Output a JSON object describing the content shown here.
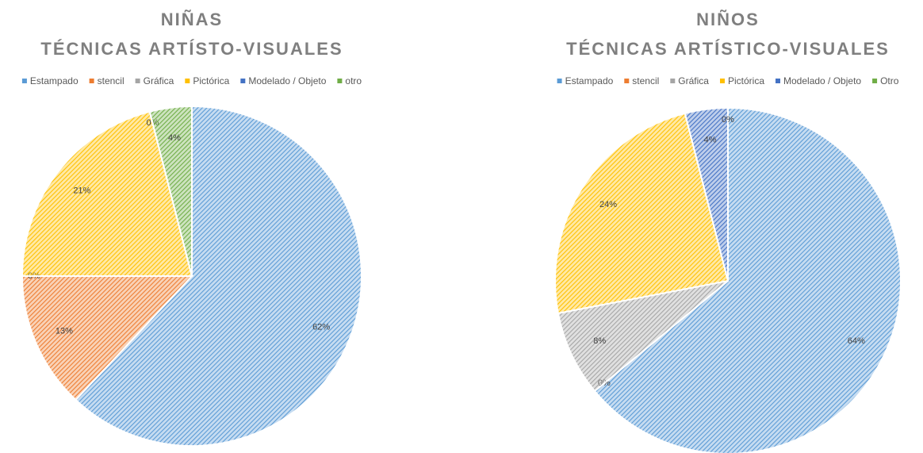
{
  "chart_data": [
    {
      "type": "pie",
      "title": "NIÑAS",
      "subtitle": "TÉCNICAS ARTÍSTO-VISUALES",
      "categories": [
        "Estampado",
        "stencil",
        "Gráfica",
        "Pictórica",
        "Modelado / Objeto",
        "otro"
      ],
      "values": [
        62,
        13,
        0,
        21,
        0,
        4
      ],
      "value_labels": [
        "62%",
        "13%",
        "0%",
        "21%",
        "0%",
        "4%"
      ],
      "colors": [
        "#5b9bd5",
        "#ed7d31",
        "#a5a5a5",
        "#ffc000",
        "#4472c4",
        "#70ad47"
      ],
      "legend": "top"
    },
    {
      "type": "pie",
      "title": "NIÑOS",
      "subtitle": "TÉCNICAS ARTÍSTICO-VISUALES",
      "categories": [
        "Estampado",
        "stencil",
        "Gráfica",
        "Pictórica",
        "Modelado / Objeto",
        "Otro"
      ],
      "values": [
        64,
        0,
        8,
        24,
        4,
        0
      ],
      "value_labels": [
        "64%",
        "0%",
        "8%",
        "24%",
        "4%",
        "0%"
      ],
      "colors": [
        "#5b9bd5",
        "#ed7d31",
        "#a5a5a5",
        "#ffc000",
        "#4472c4",
        "#70ad47"
      ],
      "legend": "top"
    }
  ]
}
